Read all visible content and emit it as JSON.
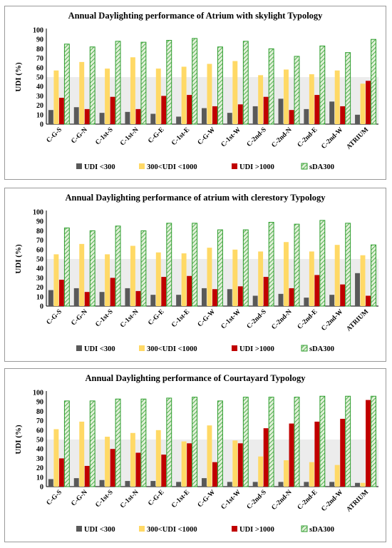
{
  "colors": {
    "udi_lt300": "#595959",
    "udi_mid": "#ffd966",
    "udi_gt1000": "#c00000",
    "sda300_stroke": "#2e9e2e",
    "sda300_fill": "#e2f0d9",
    "band": "#ececec"
  },
  "icons": {
    "sda_pattern": "diagonal-hatch"
  },
  "chart_data": [
    {
      "type": "bar",
      "title": "Annual Daylighting performance of Atrium with skylight Typology",
      "ylabel": "UDI (%)",
      "ylim": [
        0,
        100
      ],
      "yticks": [
        "0",
        "10",
        "20",
        "30",
        "40",
        "50",
        "60",
        "70",
        "80",
        "90",
        "100"
      ],
      "grid": false,
      "shaded_band": [
        0,
        50
      ],
      "legend_position": "bottom",
      "categories": [
        "C-G-S",
        "C-G-N",
        "C-1st-S",
        "C-1st-N",
        "C-G-E",
        "C-1st-E",
        "C-G-W",
        "C-1st-W",
        "C-2nd-S",
        "C-2nd-N",
        "C-2nd-E",
        "C-2nd-W",
        "ATRIUM"
      ],
      "series": [
        {
          "name": "UDI <300",
          "values": [
            15,
            18,
            12,
            13,
            11,
            8,
            17,
            12,
            19,
            27,
            16,
            24,
            10
          ]
        },
        {
          "name": "300<UDI <1000",
          "values": [
            57,
            66,
            59,
            71,
            59,
            61,
            64,
            67,
            52,
            58,
            53,
            57,
            43
          ]
        },
        {
          "name": "UDI >1000",
          "values": [
            28,
            16,
            29,
            16,
            30,
            31,
            19,
            21,
            29,
            15,
            31,
            19,
            46
          ]
        },
        {
          "name": "sDA300",
          "values": [
            85,
            82,
            88,
            87,
            89,
            91,
            82,
            88,
            80,
            72,
            83,
            76,
            90
          ]
        }
      ]
    },
    {
      "type": "bar",
      "title": "Annual Daylighting performance of atrium with clerestory Typology",
      "ylabel": "UDI (%)",
      "ylim": [
        0,
        100
      ],
      "yticks": [
        "0",
        "10",
        "20",
        "30",
        "40",
        "50",
        "60",
        "70",
        "80",
        "90",
        "100"
      ],
      "grid": false,
      "shaded_band": [
        0,
        50
      ],
      "legend_position": "bottom",
      "categories": [
        "C-G-S",
        "C-G-N",
        "C-1st-S",
        "C-1st-N",
        "C-G-E",
        "C-1st-E",
        "C-G-W",
        "C-1st-W",
        "C-2nd-S",
        "C-2nd-N",
        "C-2nd-E",
        "C-2nd-W",
        "ATRIUM"
      ],
      "series": [
        {
          "name": "UDI <300",
          "values": [
            17,
            19,
            15,
            19,
            12,
            12,
            19,
            18,
            11,
            13,
            9,
            12,
            35
          ]
        },
        {
          "name": "300<UDI <1000",
          "values": [
            55,
            66,
            55,
            64,
            57,
            56,
            62,
            60,
            58,
            68,
            58,
            65,
            54
          ]
        },
        {
          "name": "UDI >1000",
          "values": [
            28,
            15,
            30,
            16,
            31,
            32,
            18,
            21,
            31,
            19,
            33,
            23,
            11
          ]
        },
        {
          "name": "sDA300",
          "values": [
            83,
            80,
            85,
            80,
            88,
            88,
            81,
            81,
            89,
            87,
            91,
            88,
            65
          ]
        }
      ]
    },
    {
      "type": "bar",
      "title": "Annual Daylighting performance of Courtayard Typology",
      "ylabel": "UDI (%)",
      "ylim": [
        0,
        100
      ],
      "yticks": [
        "0",
        "10",
        "20",
        "30",
        "40",
        "50",
        "60",
        "70",
        "80",
        "90",
        "100"
      ],
      "grid": false,
      "shaded_band": [
        0,
        50
      ],
      "legend_position": "bottom",
      "categories": [
        "C-G-S",
        "C-G-N",
        "C-1st-S",
        "C-1st-N",
        "C-G-E",
        "C-1st-E",
        "C-G-W",
        "C-1st-W",
        "C-2nd-S",
        "C-2nd-N",
        "C-2nd-E",
        "C-2nd-W",
        "ATRIUM"
      ],
      "series": [
        {
          "name": "UDI <300",
          "values": [
            8,
            9,
            7,
            6,
            6,
            5,
            9,
            5,
            5,
            5,
            5,
            5,
            4
          ]
        },
        {
          "name": "300<UDI <1000",
          "values": [
            61,
            69,
            53,
            57,
            60,
            48,
            65,
            49,
            32,
            28,
            26,
            23,
            4
          ]
        },
        {
          "name": "UDI >1000",
          "values": [
            30,
            22,
            40,
            36,
            34,
            46,
            26,
            46,
            62,
            67,
            69,
            72,
            92
          ]
        },
        {
          "name": "sDA300",
          "values": [
            91,
            91,
            93,
            93,
            94,
            95,
            91,
            95,
            95,
            95,
            96,
            96,
            96
          ]
        }
      ]
    }
  ]
}
